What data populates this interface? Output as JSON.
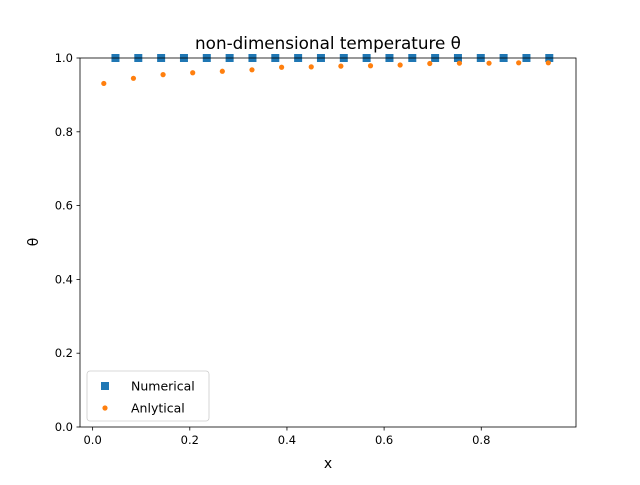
{
  "chart_data": {
    "type": "scatter",
    "title": "non-dimensional temperature θ",
    "xlabel": "x",
    "ylabel": "θ",
    "xlim": [
      -0.026,
      0.995
    ],
    "ylim": [
      0,
      1
    ],
    "xticks": [
      0.0,
      0.2,
      0.4,
      0.6,
      0.8
    ],
    "xtick_labels": [
      "0.0",
      "0.2",
      "0.4",
      "0.6",
      "0.8"
    ],
    "yticks": [
      0.0,
      0.2,
      0.4,
      0.6,
      0.8,
      1.0
    ],
    "ytick_labels": [
      "0.0",
      "0.2",
      "0.4",
      "0.6",
      "0.8",
      "1.0"
    ],
    "grid": false,
    "legend_position": "lower-left",
    "series": [
      {
        "name": "Numerical",
        "marker": "square",
        "color": "#1f77b4",
        "x": [
          0.047,
          0.094,
          0.141,
          0.188,
          0.235,
          0.282,
          0.329,
          0.376,
          0.423,
          0.47,
          0.517,
          0.564,
          0.611,
          0.658,
          0.705,
          0.752,
          0.799,
          0.846,
          0.893,
          0.94
        ],
        "y": [
          1.0,
          1.0,
          1.0,
          1.0,
          1.0,
          1.0,
          1.0,
          1.0,
          1.0,
          1.0,
          1.0,
          1.0,
          1.0,
          1.0,
          1.0,
          1.0,
          1.0,
          1.0,
          1.0,
          1.0
        ]
      },
      {
        "name": "Anlytical",
        "marker": "circle",
        "color": "#ff7f0e",
        "x": [
          0.023,
          0.084,
          0.145,
          0.206,
          0.267,
          0.328,
          0.389,
          0.45,
          0.511,
          0.572,
          0.633,
          0.694,
          0.755,
          0.816,
          0.877,
          0.938
        ],
        "y": [
          0.931,
          0.945,
          0.955,
          0.96,
          0.964,
          0.968,
          0.975,
          0.976,
          0.978,
          0.979,
          0.981,
          0.985,
          0.986,
          0.986,
          0.987,
          0.987
        ]
      }
    ]
  }
}
